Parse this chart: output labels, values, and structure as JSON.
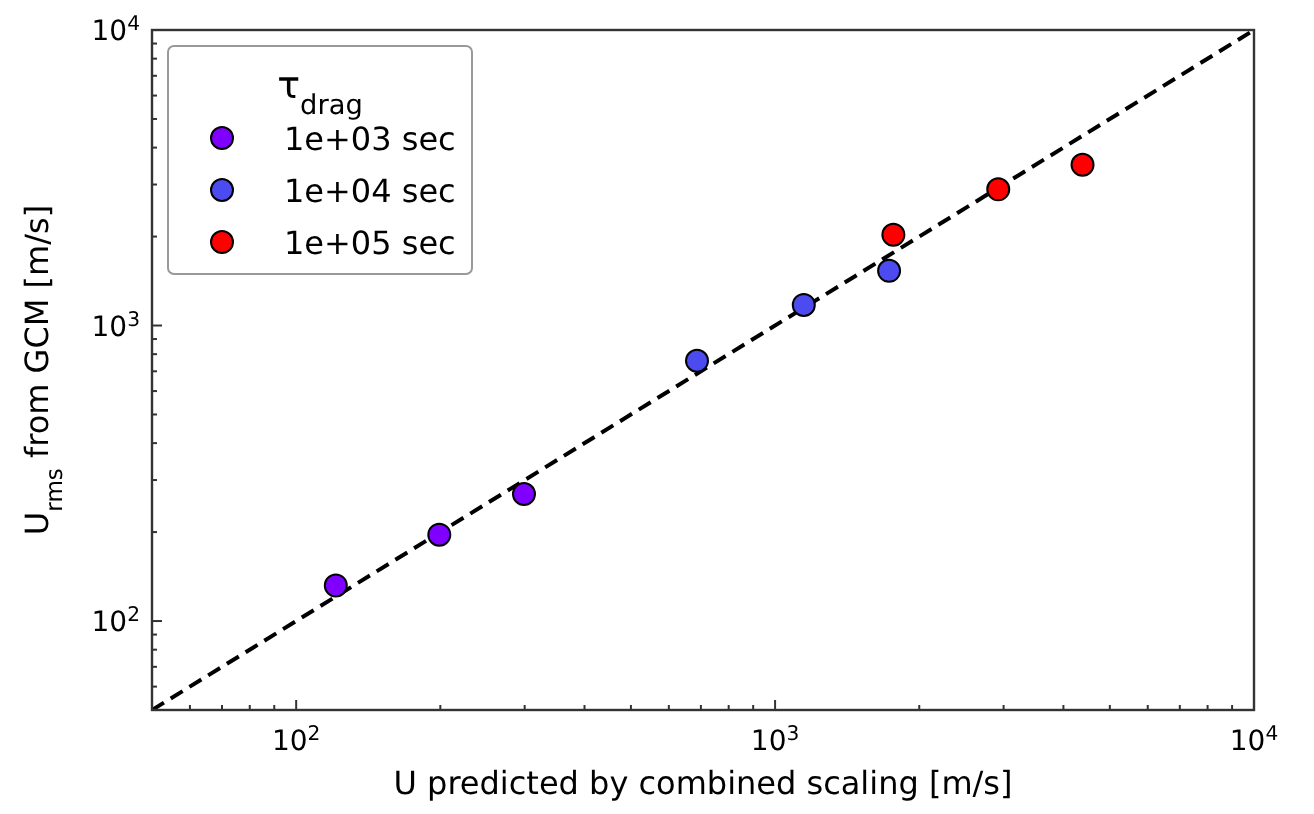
{
  "chart_data": {
    "type": "scatter",
    "xlabel": "U predicted by combined scaling [m/s]",
    "ylabel": "U$_{rms}$ from GCM [m/s]",
    "legend_title": "τ$_{drag}$",
    "log": "xy",
    "grid": false,
    "legend": "top left",
    "marker": "circle",
    "xlim": [
      50,
      10000
    ],
    "ylim": [
      50,
      10000
    ],
    "xticks": [
      {
        "value": 100,
        "label": "10$^{2}$"
      },
      {
        "value": 1000,
        "label": "10$^{3}$"
      },
      {
        "value": 10000,
        "label": "10$^{4}$"
      }
    ],
    "yticks": [
      {
        "value": 100,
        "label": "10$^{2}$"
      },
      {
        "value": 1000,
        "label": "10$^{3}$"
      },
      {
        "value": 10000,
        "label": "10$^{4}$"
      }
    ],
    "series": [
      {
        "type": "line",
        "color": "#000000",
        "line_style": "dashed",
        "marker": "none",
        "x": [
          50,
          10000
        ],
        "values": [
          50,
          10000
        ]
      },
      {
        "name": "1e+03 sec",
        "color": "#7f00ff",
        "x": [
          121,
          199,
          299
        ],
        "values": [
          132,
          196,
          269
        ]
      },
      {
        "name": "1e+04 sec",
        "color": "#4b4bf0",
        "x": [
          687,
          1148,
          1730
        ],
        "values": [
          760,
          1174,
          1531
        ]
      },
      {
        "name": "1e+05 sec",
        "color": "#ff0000",
        "x": [
          1766,
          2924,
          4385
        ],
        "values": [
          2028,
          2890,
          3500
        ]
      }
    ]
  }
}
